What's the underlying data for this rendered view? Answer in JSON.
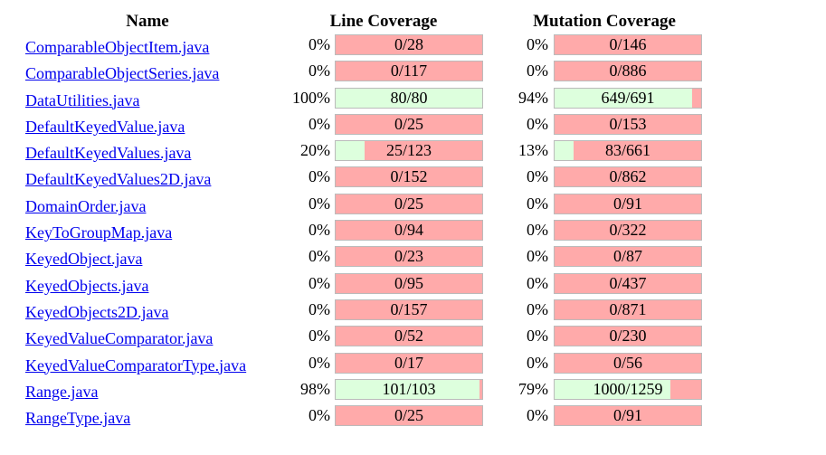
{
  "headers": {
    "name": "Name",
    "line_coverage": "Line Coverage",
    "mutation_coverage": "Mutation Coverage"
  },
  "colors": {
    "covered": "#ddffdd",
    "uncovered": "#ffaaaa",
    "link": "#0000ee"
  },
  "files": [
    {
      "name": "ComparableObjectItem.java",
      "line_pct": "0%",
      "line_count": "0/28",
      "line_fraction": 0.0,
      "mut_pct": "0%",
      "mut_count": "0/146",
      "mut_fraction": 0.0
    },
    {
      "name": "ComparableObjectSeries.java",
      "line_pct": "0%",
      "line_count": "0/117",
      "line_fraction": 0.0,
      "mut_pct": "0%",
      "mut_count": "0/886",
      "mut_fraction": 0.0
    },
    {
      "name": "DataUtilities.java",
      "line_pct": "100%",
      "line_count": "80/80",
      "line_fraction": 1.0,
      "mut_pct": "94%",
      "mut_count": "649/691",
      "mut_fraction": 0.94
    },
    {
      "name": "DefaultKeyedValue.java",
      "line_pct": "0%",
      "line_count": "0/25",
      "line_fraction": 0.0,
      "mut_pct": "0%",
      "mut_count": "0/153",
      "mut_fraction": 0.0
    },
    {
      "name": "DefaultKeyedValues.java",
      "line_pct": "20%",
      "line_count": "25/123",
      "line_fraction": 0.2,
      "mut_pct": "13%",
      "mut_count": "83/661",
      "mut_fraction": 0.13
    },
    {
      "name": "DefaultKeyedValues2D.java",
      "line_pct": "0%",
      "line_count": "0/152",
      "line_fraction": 0.0,
      "mut_pct": "0%",
      "mut_count": "0/862",
      "mut_fraction": 0.0
    },
    {
      "name": "DomainOrder.java",
      "line_pct": "0%",
      "line_count": "0/25",
      "line_fraction": 0.0,
      "mut_pct": "0%",
      "mut_count": "0/91",
      "mut_fraction": 0.0
    },
    {
      "name": "KeyToGroupMap.java",
      "line_pct": "0%",
      "line_count": "0/94",
      "line_fraction": 0.0,
      "mut_pct": "0%",
      "mut_count": "0/322",
      "mut_fraction": 0.0
    },
    {
      "name": "KeyedObject.java",
      "line_pct": "0%",
      "line_count": "0/23",
      "line_fraction": 0.0,
      "mut_pct": "0%",
      "mut_count": "0/87",
      "mut_fraction": 0.0
    },
    {
      "name": "KeyedObjects.java",
      "line_pct": "0%",
      "line_count": "0/95",
      "line_fraction": 0.0,
      "mut_pct": "0%",
      "mut_count": "0/437",
      "mut_fraction": 0.0
    },
    {
      "name": "KeyedObjects2D.java",
      "line_pct": "0%",
      "line_count": "0/157",
      "line_fraction": 0.0,
      "mut_pct": "0%",
      "mut_count": "0/871",
      "mut_fraction": 0.0
    },
    {
      "name": "KeyedValueComparator.java",
      "line_pct": "0%",
      "line_count": "0/52",
      "line_fraction": 0.0,
      "mut_pct": "0%",
      "mut_count": "0/230",
      "mut_fraction": 0.0
    },
    {
      "name": "KeyedValueComparatorType.java",
      "line_pct": "0%",
      "line_count": "0/17",
      "line_fraction": 0.0,
      "mut_pct": "0%",
      "mut_count": "0/56",
      "mut_fraction": 0.0
    },
    {
      "name": "Range.java",
      "line_pct": "98%",
      "line_count": "101/103",
      "line_fraction": 0.98,
      "mut_pct": "79%",
      "mut_count": "1000/1259",
      "mut_fraction": 0.79
    },
    {
      "name": "RangeType.java",
      "line_pct": "0%",
      "line_count": "0/25",
      "line_fraction": 0.0,
      "mut_pct": "0%",
      "mut_count": "0/91",
      "mut_fraction": 0.0
    }
  ]
}
